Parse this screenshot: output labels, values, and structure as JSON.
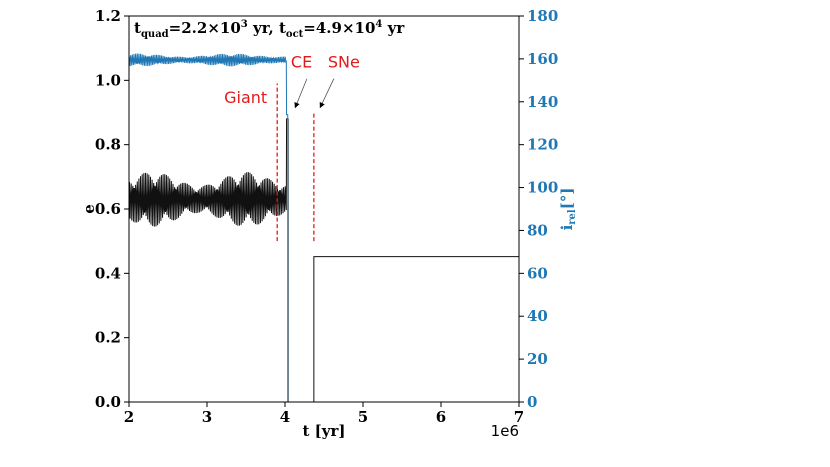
{
  "chart_data": {
    "type": "line",
    "title": {
      "quad_sym": "t",
      "quad_sub": "quad",
      "quad_val": "=2.2",
      "quad_times": "×",
      "quad_base": "10",
      "quad_exp": "3",
      "quad_unit": " yr, ",
      "oct_sym": "t",
      "oct_sub": "oct",
      "oct_val": "=4.9",
      "oct_times": "×",
      "oct_base": "10",
      "oct_exp": "4",
      "oct_unit": " yr"
    },
    "xlabel": "t [yr]",
    "x_offset_label": "1e6",
    "ylabel_left": "e",
    "ylabel_right_main": "i",
    "ylabel_right_sub": "rel",
    "ylabel_right_unit": "[°]",
    "xlim": [
      2,
      7
    ],
    "ylim_left": [
      0,
      1.2
    ],
    "ylim_right": [
      0,
      180
    ],
    "x_ticks": [
      2,
      3,
      4,
      5,
      6,
      7
    ],
    "x_tick_labels": [
      "2",
      "3",
      "4",
      "5",
      "6",
      "7"
    ],
    "y_left_ticks": [
      0,
      0.2,
      0.4,
      0.6,
      0.8,
      1.0,
      1.2
    ],
    "y_left_tick_labels": [
      "0.0",
      "0.2",
      "0.4",
      "0.6",
      "0.8",
      "1.0",
      "1.2"
    ],
    "y_right_ticks": [
      0,
      20,
      40,
      60,
      80,
      100,
      120,
      140,
      160,
      180
    ],
    "y_right_tick_labels": [
      "0",
      "20",
      "40",
      "60",
      "80",
      "100",
      "120",
      "140",
      "160",
      "180"
    ],
    "grid": false,
    "series": [
      {
        "axis": "left",
        "color": "#111111",
        "oscillation": {
          "x_start": 2.0,
          "x_end": 4.02,
          "mean": 0.63,
          "amplitude": 0.085
        },
        "after": [
          [
            4.02,
            0.88
          ],
          [
            4.04,
            0.88
          ],
          [
            4.04,
            0.0
          ],
          [
            4.37,
            0.0
          ],
          [
            4.37,
            0.452
          ],
          [
            7.0,
            0.452
          ]
        ]
      },
      {
        "axis": "right",
        "color": "#1f77b4",
        "oscillation": {
          "x_start": 2.0,
          "x_end": 4.02,
          "mean": 159.5,
          "amplitude": 3.0
        },
        "after": [
          [
            4.02,
            134
          ],
          [
            4.035,
            134
          ],
          [
            4.035,
            0.0
          ],
          [
            7.0,
            0.0
          ]
        ]
      }
    ],
    "events": [
      {
        "label": "Giant",
        "x": 3.9,
        "y_range": [
          0.5,
          0.99
        ],
        "color": "#e31a1c"
      },
      {
        "label": "CE",
        "x": 4.05,
        "arrow_to": [
          4.13,
          0.915
        ],
        "color": "#e31a1c"
      },
      {
        "label": "SNe",
        "x": 4.37,
        "y_range": [
          0.5,
          0.9
        ],
        "arrow_to": [
          4.45,
          0.915
        ],
        "color": "#e31a1c"
      }
    ]
  }
}
